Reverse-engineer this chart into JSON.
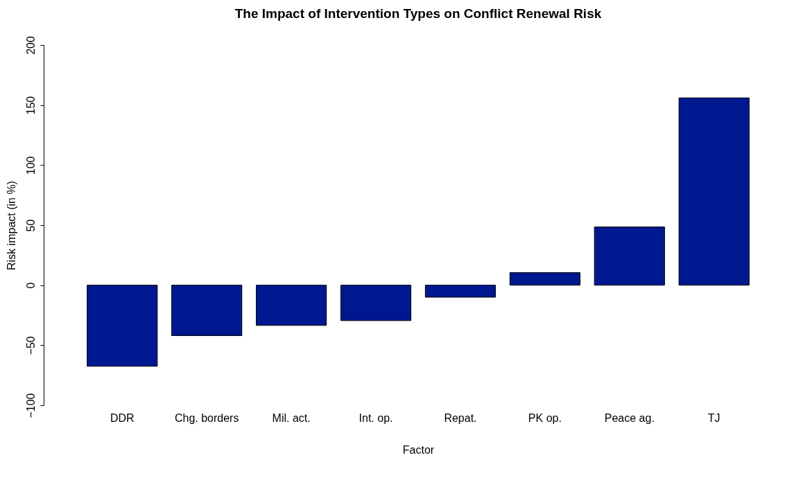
{
  "chart_data": {
    "type": "bar",
    "title": "The Impact of Intervention Types on Conflict Renewal Risk",
    "xlabel": "Factor",
    "ylabel": "Risk impact (in %)",
    "categories": [
      "DDR",
      "Chg. borders",
      "Mil. act.",
      "Int. op.",
      "Repat.",
      "PK op.",
      "Peace ag.",
      "TJ"
    ],
    "values": [
      -67.5,
      -42,
      -33.5,
      -29.5,
      -10,
      10.5,
      48.5,
      156
    ],
    "color": "#00188f",
    "ylim": [
      -100,
      200
    ],
    "yticks": [
      -100,
      -50,
      0,
      50,
      100,
      150,
      200
    ],
    "grid": false
  }
}
